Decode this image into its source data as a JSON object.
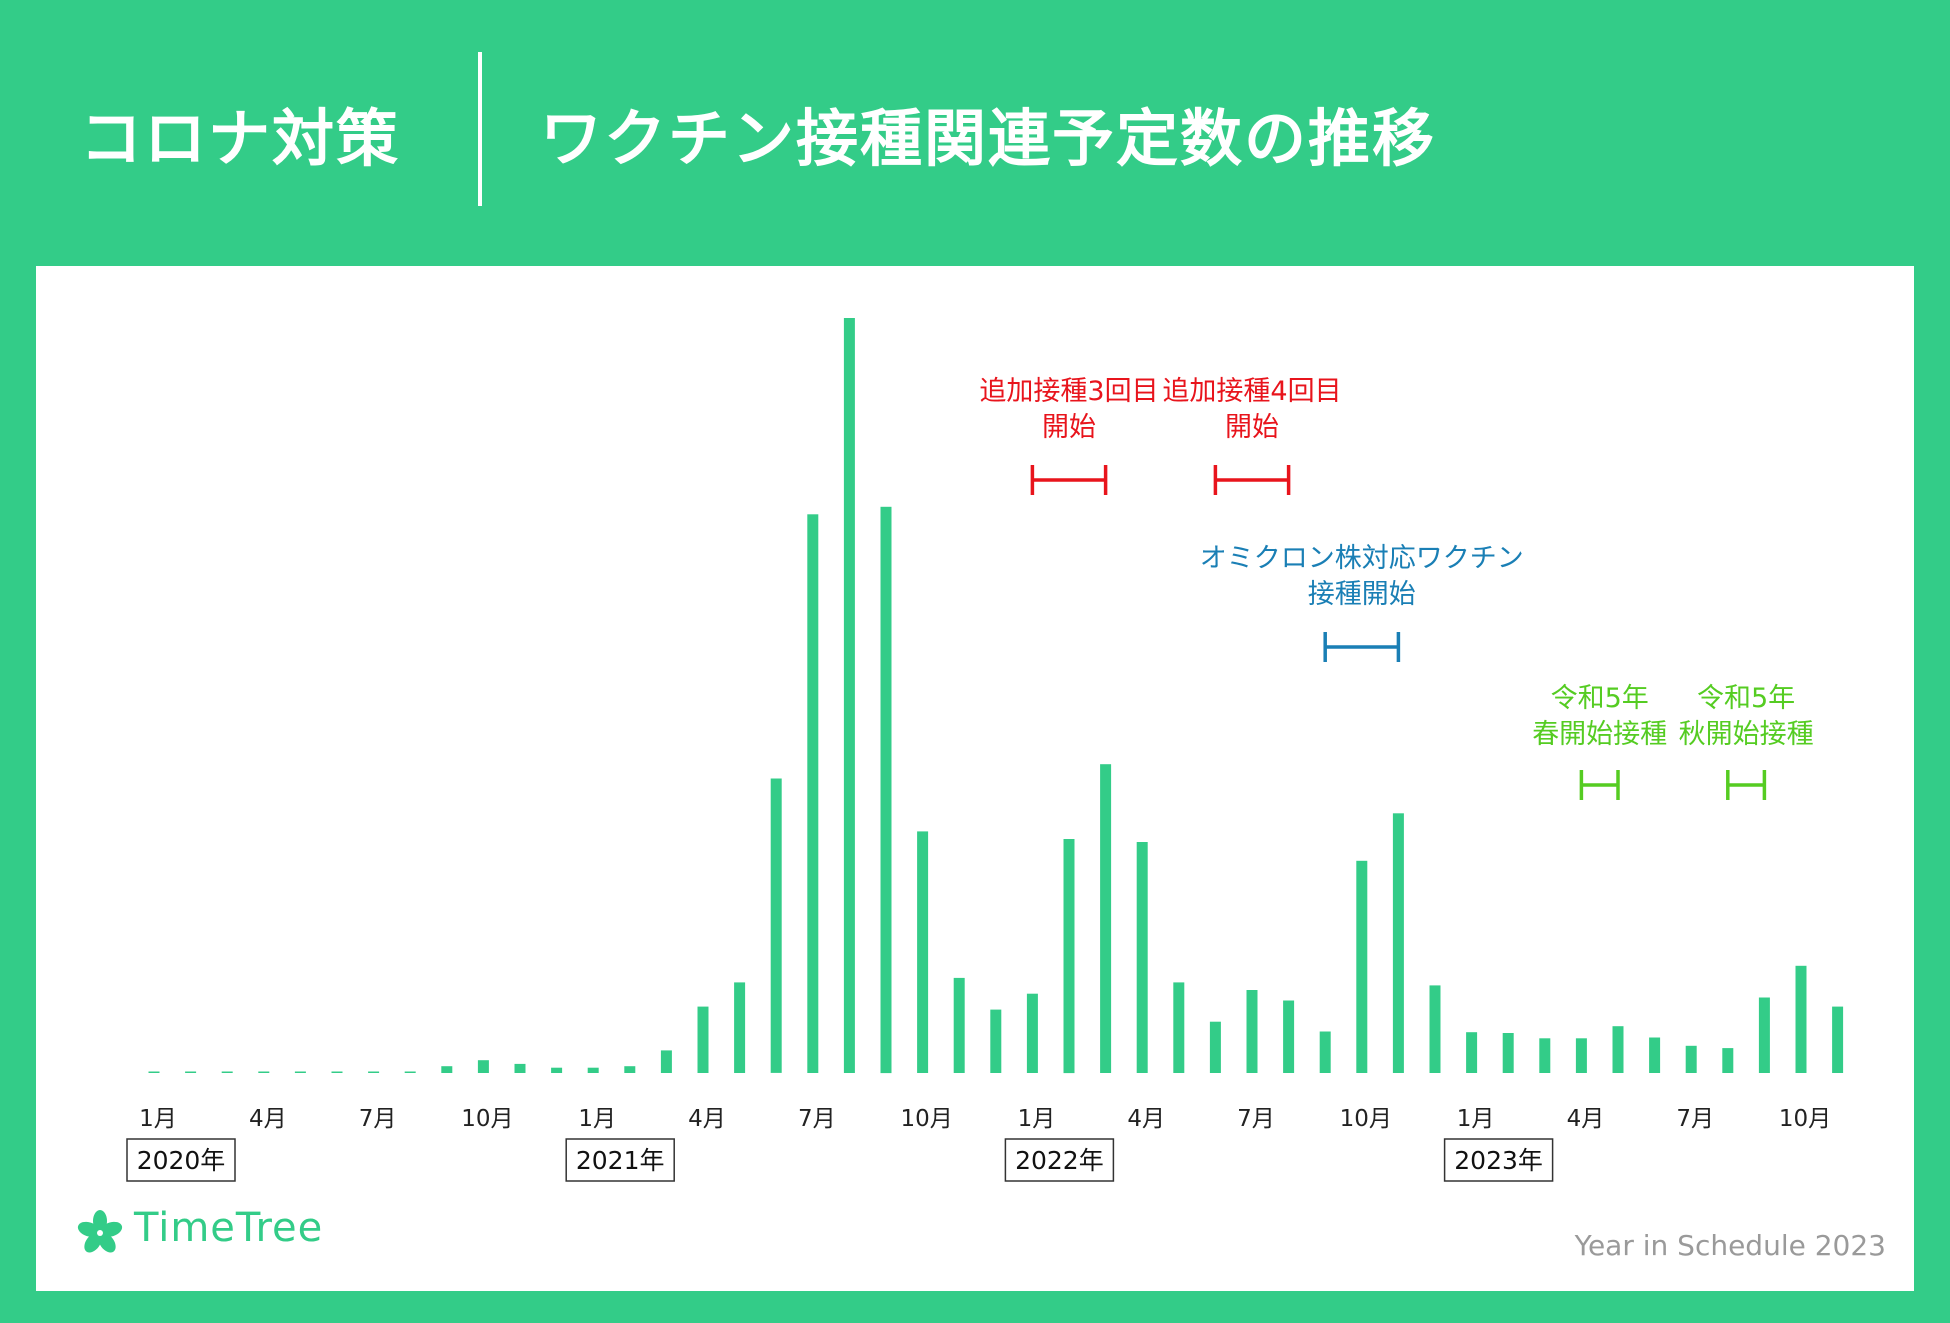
{
  "header": {
    "category": "コロナ対策",
    "title": "ワクチン接種関連予定数の推移"
  },
  "logo": {
    "name": "TimeTree"
  },
  "footer": {
    "caption": "Year in Schedule 2023"
  },
  "colors": {
    "brand": "#33cc88",
    "bar": "#33cc88",
    "red": "#e8141c",
    "blue": "#1a7fb5",
    "lightgreen": "#55cc22"
  },
  "chart_data": {
    "type": "bar",
    "title": "ワクチン接種関連予定数の推移",
    "xlabel": "",
    "ylabel": "",
    "grid": false,
    "y_axis_shown": false,
    "categories": [
      "2020-01",
      "2020-02",
      "2020-03",
      "2020-04",
      "2020-05",
      "2020-06",
      "2020-07",
      "2020-08",
      "2020-09",
      "2020-10",
      "2020-11",
      "2020-12",
      "2021-01",
      "2021-02",
      "2021-03",
      "2021-04",
      "2021-05",
      "2021-06",
      "2021-07",
      "2021-08",
      "2021-09",
      "2021-10",
      "2021-11",
      "2021-12",
      "2022-01",
      "2022-02",
      "2022-03",
      "2022-04",
      "2022-05",
      "2022-06",
      "2022-07",
      "2022-08",
      "2022-09",
      "2022-10",
      "2022-11",
      "2022-12",
      "2023-01",
      "2023-02",
      "2023-03",
      "2023-04",
      "2023-05",
      "2023-06",
      "2023-07",
      "2023-08",
      "2023-09",
      "2023-10",
      "2023-11"
    ],
    "values": [
      0.2,
      0.2,
      0.2,
      0.2,
      0.2,
      0.2,
      0.2,
      0.2,
      0.9,
      1.7,
      1.2,
      0.7,
      0.7,
      0.9,
      3.0,
      8.8,
      12.0,
      39.0,
      74.0,
      100.0,
      75.0,
      32.0,
      12.6,
      8.4,
      10.5,
      31.0,
      40.9,
      30.6,
      12.0,
      6.8,
      11.0,
      9.6,
      5.5,
      28.1,
      34.4,
      11.6,
      5.4,
      5.3,
      4.6,
      4.6,
      6.2,
      4.7,
      3.6,
      3.3,
      10.0,
      14.2,
      8.8
    ],
    "x_tick_labels": [
      {
        "index": 0,
        "label": "1月"
      },
      {
        "index": 3,
        "label": "4月"
      },
      {
        "index": 6,
        "label": "7月"
      },
      {
        "index": 9,
        "label": "10月"
      },
      {
        "index": 12,
        "label": "1月"
      },
      {
        "index": 15,
        "label": "4月"
      },
      {
        "index": 18,
        "label": "7月"
      },
      {
        "index": 21,
        "label": "10月"
      },
      {
        "index": 24,
        "label": "1月"
      },
      {
        "index": 27,
        "label": "4月"
      },
      {
        "index": 30,
        "label": "7月"
      },
      {
        "index": 33,
        "label": "10月"
      },
      {
        "index": 36,
        "label": "1月"
      },
      {
        "index": 39,
        "label": "4月"
      },
      {
        "index": 42,
        "label": "7月"
      },
      {
        "index": 45,
        "label": "10月"
      }
    ],
    "year_labels": [
      {
        "index": 0,
        "label": "2020年"
      },
      {
        "index": 12,
        "label": "2021年"
      },
      {
        "index": 24,
        "label": "2022年"
      },
      {
        "index": 36,
        "label": "2023年"
      }
    ],
    "annotations": [
      {
        "lines": [
          "追加接種3回目",
          "開始"
        ],
        "from": "2022-01",
        "to": "2022-03",
        "color": "#e8141c",
        "level": 1
      },
      {
        "lines": [
          "追加接種4回目",
          "開始"
        ],
        "from": "2022-06",
        "to": "2022-08",
        "color": "#e8141c",
        "level": 1
      },
      {
        "lines": [
          "オミクロン株対応ワクチン",
          "接種開始"
        ],
        "from": "2022-09",
        "to": "2022-11",
        "color": "#1a7fb5",
        "level": 2
      },
      {
        "lines": [
          "令和5年",
          "春開始接種"
        ],
        "from": "2023-04",
        "to": "2023-05",
        "color": "#55cc22",
        "level": 3
      },
      {
        "lines": [
          "令和5年",
          "秋開始接種"
        ],
        "from": "2023-08",
        "to": "2023-09",
        "color": "#55cc22",
        "level": 3
      }
    ]
  }
}
